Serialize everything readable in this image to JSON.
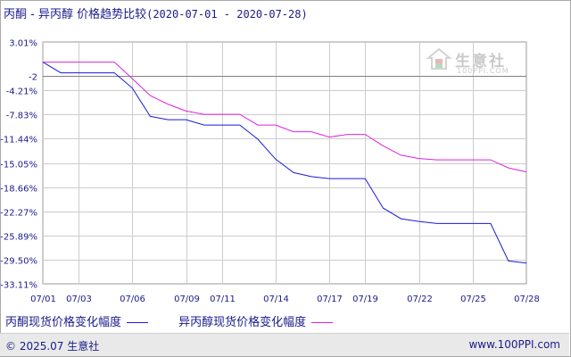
{
  "header": {
    "title": "丙酮 - 异丙醇 价格趋势比较",
    "date_range": "(2020-07-01 - 2020-07-28)"
  },
  "watermark": {
    "name": "生意社",
    "url": "100PPI.COM"
  },
  "footer": {
    "copyright": "© 2025.07 生意社",
    "site": "www.100PPI.com"
  },
  "colors": {
    "series_1": "#1a1adc",
    "series_2": "#e020e0",
    "reference_line": "#808080",
    "grid": "#cccccc",
    "text": "#1a1a8c"
  },
  "chart_data": {
    "type": "line",
    "title": "丙酮 - 异丙醇 价格趋势比较",
    "subtitle": "(2020-07-01 - 2020-07-28)",
    "xlabel": "",
    "ylabel": "",
    "x_ticks": [
      "07/01",
      "07/03",
      "07/06",
      "07/09",
      "07/11",
      "07/14",
      "07/17",
      "07/19",
      "07/22",
      "07/25",
      "07/28"
    ],
    "y_ticks": [
      "3.01%",
      "-2",
      "-4.21%",
      "-7.83%",
      "-11.44%",
      "-15.05%",
      "-18.66%",
      "-22.27%",
      "-25.89%",
      "-29.50%",
      "-33.11%"
    ],
    "y_tick_values": [
      3.01,
      -2,
      -4.21,
      -7.83,
      -11.44,
      -15.05,
      -18.66,
      -22.27,
      -25.89,
      -29.5,
      -33.11
    ],
    "ylim": [
      -33.11,
      3.01
    ],
    "reference_line": -2,
    "grid": true,
    "legend_position": "bottom",
    "x": [
      "07/01",
      "07/02",
      "07/03",
      "07/04",
      "07/05",
      "07/06",
      "07/07",
      "07/08",
      "07/09",
      "07/10",
      "07/11",
      "07/12",
      "07/13",
      "07/14",
      "07/15",
      "07/16",
      "07/17",
      "07/18",
      "07/19",
      "07/20",
      "07/21",
      "07/22",
      "07/23",
      "07/24",
      "07/25",
      "07/26",
      "07/27",
      "07/28"
    ],
    "series": [
      {
        "name": "丙酮现货价格变化幅度",
        "color": "#1a1adc",
        "values": [
          0,
          -1.6,
          -1.6,
          -1.6,
          -1.6,
          -3.9,
          -8.1,
          -8.6,
          -8.6,
          -9.4,
          -9.4,
          -9.4,
          -11.5,
          -14.5,
          -16.5,
          -17.1,
          -17.4,
          -17.4,
          -17.4,
          -21.8,
          -23.4,
          -23.8,
          -24.1,
          -24.1,
          -24.1,
          -24.1,
          -29.7,
          -30.0
        ]
      },
      {
        "name": "异丙醇现货价格变化幅度",
        "color": "#e020e0",
        "values": [
          0,
          0,
          0,
          0,
          0,
          -2.5,
          -5.0,
          -6.3,
          -7.3,
          -7.8,
          -7.8,
          -7.8,
          -9.4,
          -9.4,
          -10.4,
          -10.4,
          -11.2,
          -10.8,
          -10.8,
          -12.5,
          -13.9,
          -14.4,
          -14.6,
          -14.6,
          -14.6,
          -14.6,
          -15.8,
          -16.4
        ]
      }
    ]
  }
}
